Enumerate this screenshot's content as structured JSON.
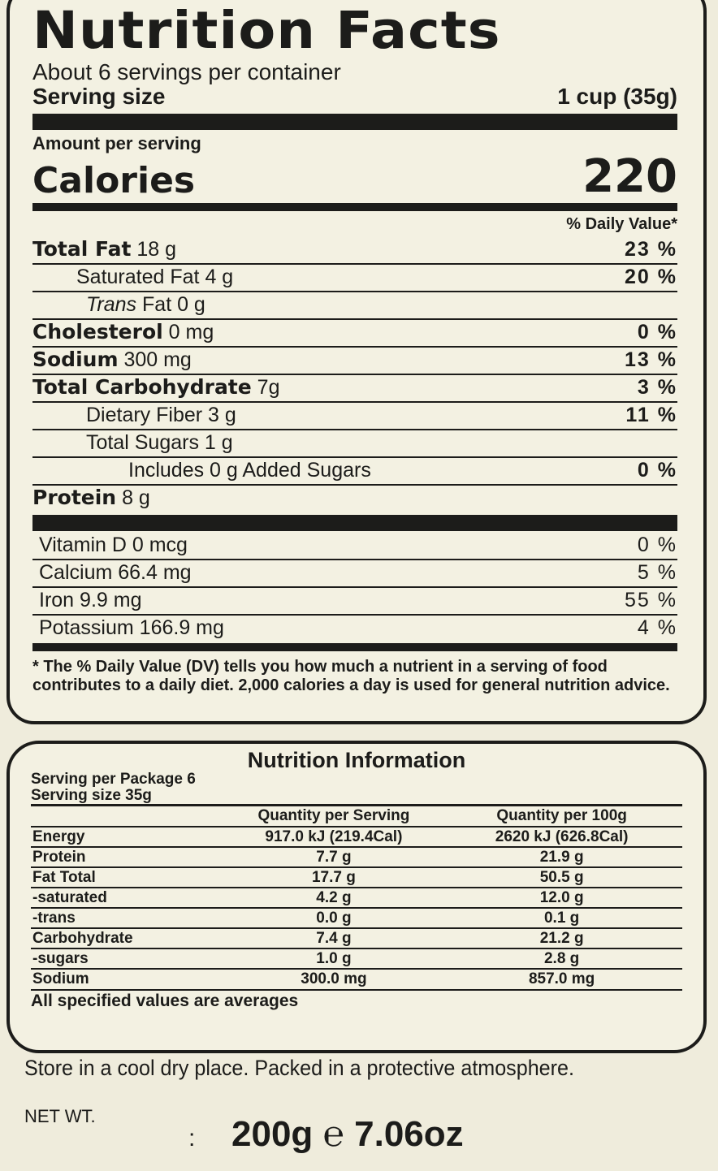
{
  "facts": {
    "title": "Nutrition Facts",
    "servings": "About 6 servings per container",
    "serving_size_label": "Serving size",
    "serving_size_value": "1 cup (35g)",
    "amount_per_serving": "Amount per serving",
    "calories_label": "Calories",
    "calories_value": "220",
    "dv_header": "% Daily Value*",
    "nutrients": [
      {
        "name": "Total Fat",
        "amount": "18 g",
        "dv": "23 %"
      },
      {
        "name": "Saturated Fat",
        "amount": "4 g",
        "dv": "20 %"
      },
      {
        "name": "Trans",
        "amount": "Fat 0 g",
        "dv": ""
      },
      {
        "name": "Cholesterol",
        "amount": "0 mg",
        "dv": "0 %"
      },
      {
        "name": "Sodium",
        "amount": "300 mg",
        "dv": "13 %"
      },
      {
        "name": "Total Carbohydrate",
        "amount": "7g",
        "dv": "3 %"
      },
      {
        "name": "Dietary Fiber",
        "amount": "3 g",
        "dv": "11 %"
      },
      {
        "name": "Total Sugars",
        "amount": "1 g",
        "dv": ""
      },
      {
        "name": "Includes 0 g Added Sugars",
        "amount": "",
        "dv": "0 %"
      },
      {
        "name": "Protein",
        "amount": "8 g",
        "dv": ""
      }
    ],
    "vitamins": [
      {
        "name": "Vitamin D",
        "amount": "0 mcg",
        "dv": "0 %"
      },
      {
        "name": "Calcium",
        "amount": "66.4 mg",
        "dv": "5 %"
      },
      {
        "name": "Iron",
        "amount": "9.9 mg",
        "dv": "55 %"
      },
      {
        "name": "Potassium",
        "amount": "166.9 mg",
        "dv": "4 %"
      }
    ],
    "footnote": "* The % Daily Value (DV) tells you how much a nutrient in a serving of food contributes to a daily diet. 2,000 calories a day is used for general nutrition advice."
  },
  "info": {
    "title": "Nutrition Information",
    "servings": "Serving per Package 6",
    "serving_size": "Serving size 35g",
    "col_serving": "Quantity per Serving",
    "col_100g": "Quantity per 100g",
    "rows": [
      {
        "name": "Energy",
        "serving": "917.0 kJ (219.4Cal)",
        "per100": "2620 kJ (626.8Cal)"
      },
      {
        "name": "Protein",
        "serving": "7.7 g",
        "per100": "21.9 g"
      },
      {
        "name": "Fat Total",
        "serving": "17.7 g",
        "per100": "50.5 g"
      },
      {
        "name": "-saturated",
        "serving": "4.2 g",
        "per100": "12.0 g"
      },
      {
        "name": "-trans",
        "serving": "0.0 g",
        "per100": "0.1 g"
      },
      {
        "name": "Carbohydrate",
        "serving": "7.4 g",
        "per100": "21.2 g"
      },
      {
        "name": "-sugars",
        "serving": "1.0 g",
        "per100": "2.8 g"
      },
      {
        "name": "Sodium",
        "serving": "300.0 mg",
        "per100": "857.0 mg"
      }
    ],
    "note": "All specified values are averages"
  },
  "storage": "Store in a cool dry place. Packed in a protective atmosphere.",
  "net_wt_label": "NET WT.",
  "net_wt_sep": ":",
  "net_wt_value": "200g ℮ 7.06oz"
}
